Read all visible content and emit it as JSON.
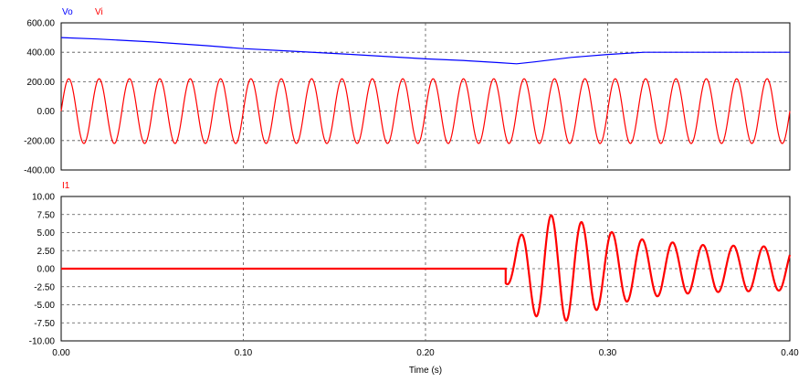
{
  "chart_data": [
    {
      "type": "line",
      "xlim": [
        0,
        0.4
      ],
      "ylim": [
        -400,
        600
      ],
      "yticks": [
        "600.00",
        "400.00",
        "200.00",
        "0.00",
        "-200.00",
        "-400.00"
      ],
      "grid": true,
      "legend_placement": "top-left",
      "series": [
        {
          "name": "Vo",
          "color": "#0000ff",
          "x": [
            0,
            0.02,
            0.05,
            0.08,
            0.1,
            0.13,
            0.16,
            0.18,
            0.2,
            0.22,
            0.24,
            0.25,
            0.26,
            0.28,
            0.3,
            0.32,
            0.35,
            0.4
          ],
          "y": [
            500,
            490,
            470,
            445,
            425,
            405,
            385,
            370,
            355,
            345,
            330,
            322,
            335,
            365,
            385,
            400,
            400,
            400
          ]
        },
        {
          "name": "Vi",
          "color": "#ff0000",
          "wave": {
            "amplitude": 220,
            "frequency_hz": 60,
            "x_start": 0,
            "x_end": 0.4
          }
        }
      ]
    },
    {
      "type": "line",
      "xlim": [
        0,
        0.4
      ],
      "ylim": [
        -10,
        10
      ],
      "yticks": [
        "10.00",
        "7.50",
        "5.00",
        "2.50",
        "0.00",
        "-2.50",
        "-5.00",
        "-7.50",
        "-10.00"
      ],
      "xticks": [
        "0.00",
        "0.10",
        "0.20",
        "0.30",
        "0.40"
      ],
      "xlabel": "Time (s)",
      "grid": true,
      "legend_placement": "top-left",
      "series": [
        {
          "name": "I1",
          "color": "#ff0000",
          "x": [
            0,
            0.244
          ],
          "y": [
            0,
            0
          ],
          "oscillation": {
            "x_start": 0.244,
            "x_end": 0.4,
            "frequency_hz": 60,
            "envelope_x": [
              0.244,
              0.255,
              0.265,
              0.275,
              0.285,
              0.3,
              0.32,
              0.35,
              0.4
            ],
            "envelope_y": [
              2.0,
              5.5,
              7.4,
              7.4,
              6.5,
              5.2,
              4.0,
              3.3,
              3.0
            ]
          }
        }
      ]
    }
  ]
}
